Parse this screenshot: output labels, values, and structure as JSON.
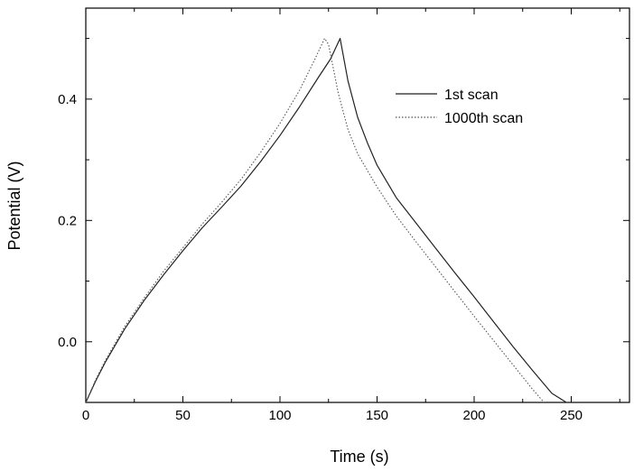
{
  "chart_data": {
    "type": "line",
    "xlabel": "Time (s)",
    "ylabel": "Potential (V)",
    "xlim": [
      0,
      280
    ],
    "ylim": [
      -0.1,
      0.55
    ],
    "x_ticks": [
      0,
      50,
      100,
      150,
      200,
      250
    ],
    "y_ticks": [
      0.0,
      0.2,
      0.4
    ],
    "x_tick_labels": [
      "0",
      "50",
      "100",
      "150",
      "200",
      "250"
    ],
    "y_tick_labels": [
      "0.0",
      "0.2",
      "0.4"
    ],
    "grid": false,
    "legend_position": "top-right",
    "series": [
      {
        "name": "1st scan",
        "style": "solid",
        "color": "#222222",
        "x": [
          0,
          5,
          10,
          20,
          30,
          40,
          50,
          60,
          70,
          80,
          90,
          100,
          110,
          120,
          126,
          131,
          135,
          140,
          145,
          150,
          160,
          170,
          180,
          190,
          200,
          210,
          220,
          230,
          240,
          250,
          251
        ],
        "y": [
          -0.1,
          -0.065,
          -0.034,
          0.021,
          0.068,
          0.11,
          0.15,
          0.188,
          0.222,
          0.257,
          0.297,
          0.34,
          0.387,
          0.437,
          0.466,
          0.5,
          0.43,
          0.37,
          0.328,
          0.291,
          0.237,
          0.196,
          0.155,
          0.114,
          0.074,
          0.033,
          -0.008,
          -0.047,
          -0.085,
          -0.105,
          -0.1
        ]
      },
      {
        "name": "1000th scan",
        "style": "dotted",
        "color": "#555555",
        "x": [
          0,
          5,
          10,
          20,
          30,
          40,
          50,
          60,
          70,
          80,
          90,
          100,
          110,
          118,
          123,
          125,
          130,
          135,
          140,
          150,
          160,
          170,
          180,
          190,
          200,
          210,
          220,
          230,
          236
        ],
        "y": [
          -0.1,
          -0.063,
          -0.031,
          0.025,
          0.072,
          0.116,
          0.155,
          0.194,
          0.23,
          0.268,
          0.312,
          0.36,
          0.414,
          0.466,
          0.5,
          0.49,
          0.41,
          0.35,
          0.31,
          0.255,
          0.207,
          0.165,
          0.124,
          0.083,
          0.042,
          0.002,
          -0.038,
          -0.078,
          -0.1
        ]
      }
    ]
  }
}
